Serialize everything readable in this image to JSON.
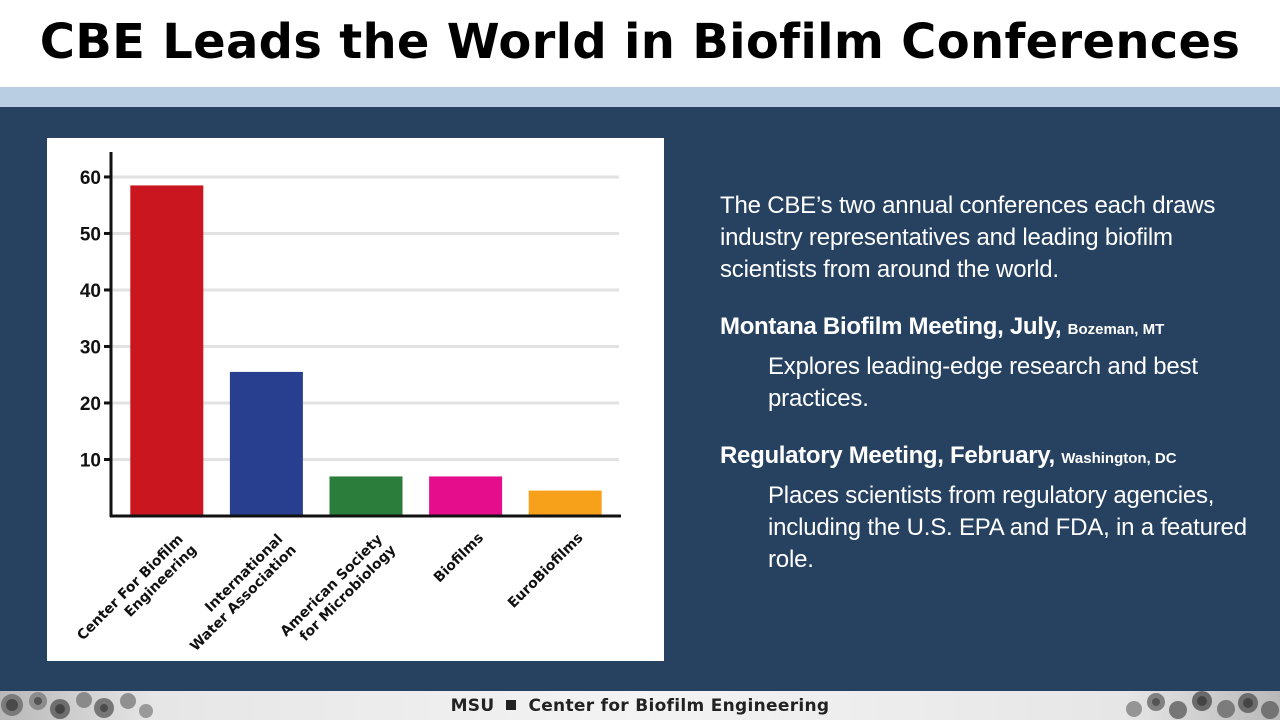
{
  "title": "CBE Leads the World in Biofilm Conferences",
  "intro": "The CBE’s two annual conferences each draws industry representatives and leading biofilm scientists from around the world.",
  "meetings": [
    {
      "name": "Montana Biofilm Meeting, July,",
      "location": "Bozeman, MT",
      "description": "Explores leading-edge research and best practices."
    },
    {
      "name": "Regulatory Meeting, February,",
      "location": "Washington, DC",
      "description": "Places scientists from regulatory agencies, including the U.S. EPA and FDA, in a featured role."
    }
  ],
  "footer": {
    "left": "MSU",
    "right": "Center for Biofilm Engineering"
  },
  "colors": {
    "background": "#274261",
    "accent_band": "#b9cde3"
  },
  "chart_data": {
    "type": "bar",
    "title": "",
    "xlabel": "",
    "ylabel": "",
    "ylim": [
      0,
      63
    ],
    "yticks": [
      10,
      20,
      30,
      40,
      50,
      60
    ],
    "grid": true,
    "categories": [
      [
        "Center For Biofilm",
        "Engineering"
      ],
      [
        "International",
        "Water Association"
      ],
      [
        "American Society",
        "for Microbiology"
      ],
      [
        "Biofilms"
      ],
      [
        "EuroBiofilms"
      ]
    ],
    "values": [
      58.5,
      25.5,
      7,
      7,
      4.5
    ],
    "colors": [
      "#c9161f",
      "#273f8e",
      "#2a7d3a",
      "#e50d8c",
      "#f7a11b"
    ]
  }
}
